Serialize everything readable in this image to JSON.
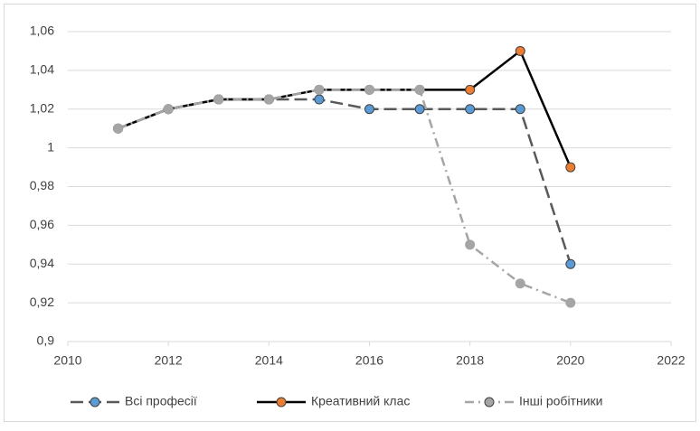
{
  "chart_data": {
    "type": "line",
    "x": [
      2011,
      2012,
      2013,
      2014,
      2015,
      2016,
      2017,
      2018,
      2019,
      2020
    ],
    "series": [
      {
        "name": "Всі професії",
        "color": "#5b9bd5",
        "line_color": "#595959",
        "line_style": "dashed",
        "values": [
          1.01,
          1.02,
          1.025,
          1.025,
          1.025,
          1.02,
          1.02,
          1.02,
          1.02,
          0.94
        ]
      },
      {
        "name": "Креативний клас",
        "color": "#ed7d31",
        "line_color": "#000000",
        "line_style": "solid",
        "values": [
          1.01,
          1.02,
          1.025,
          1.025,
          1.03,
          1.03,
          1.03,
          1.03,
          1.05,
          0.99
        ]
      },
      {
        "name": "Інші робітники",
        "color": "#a5a5a5",
        "line_color": "#a5a5a5",
        "line_style": "dashdot",
        "values": [
          1.01,
          1.02,
          1.025,
          1.025,
          1.03,
          1.03,
          1.03,
          0.95,
          0.93,
          0.92
        ]
      }
    ],
    "xlim": [
      2010,
      2022
    ],
    "xticks": [
      2010,
      2012,
      2014,
      2016,
      2018,
      2020,
      2022
    ],
    "ylim": [
      0.9,
      1.06
    ],
    "yticks": [
      {
        "value": 0.9,
        "label": "0,9"
      },
      {
        "value": 0.92,
        "label": "0,92"
      },
      {
        "value": 0.94,
        "label": "0,94"
      },
      {
        "value": 0.96,
        "label": "0,96"
      },
      {
        "value": 0.98,
        "label": "0,98"
      },
      1,
      {
        "value": 1.02,
        "label": "1,02"
      },
      {
        "value": 1.04,
        "label": "1,04"
      },
      {
        "value": 1.06,
        "label": "1,06"
      }
    ],
    "grid": true,
    "legend": "bottom"
  }
}
